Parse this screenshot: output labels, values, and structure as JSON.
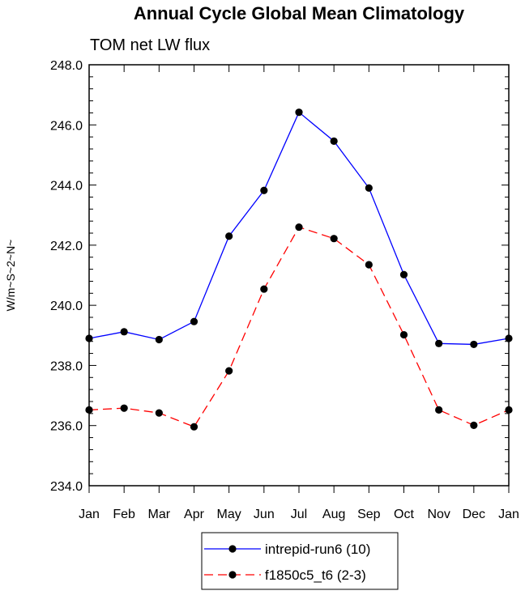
{
  "chart_data": {
    "type": "line",
    "title": "Annual Cycle Global Mean Climatology",
    "subtitle": "TOM net LW flux",
    "ylabel": "W/m~S~2~N~",
    "xlabel": "",
    "categories": [
      "Jan",
      "Feb",
      "Mar",
      "Apr",
      "May",
      "Jun",
      "Jul",
      "Aug",
      "Sep",
      "Oct",
      "Nov",
      "Dec",
      "Jan"
    ],
    "ylim": [
      234.0,
      248.0
    ],
    "yticks": [
      "234.0",
      "236.0",
      "238.0",
      "240.0",
      "242.0",
      "244.0",
      "246.0",
      "248.0"
    ],
    "grid": false,
    "legend_position": "bottom-center",
    "series": [
      {
        "name": "intrepid-run6 (10)",
        "color": "#0000ff",
        "dash": "solid",
        "marker": "circle",
        "values": [
          238.9,
          239.12,
          238.86,
          239.46,
          242.3,
          243.82,
          246.42,
          245.46,
          243.9,
          241.02,
          238.73,
          238.7,
          238.9
        ]
      },
      {
        "name": "f1850c5_t6 (2-3)",
        "color": "#ff0000",
        "dash": "dashed",
        "marker": "circle",
        "values": [
          236.52,
          236.58,
          236.42,
          235.96,
          237.82,
          240.54,
          242.6,
          242.22,
          241.35,
          239.02,
          236.52,
          236.01,
          236.52
        ]
      }
    ]
  }
}
